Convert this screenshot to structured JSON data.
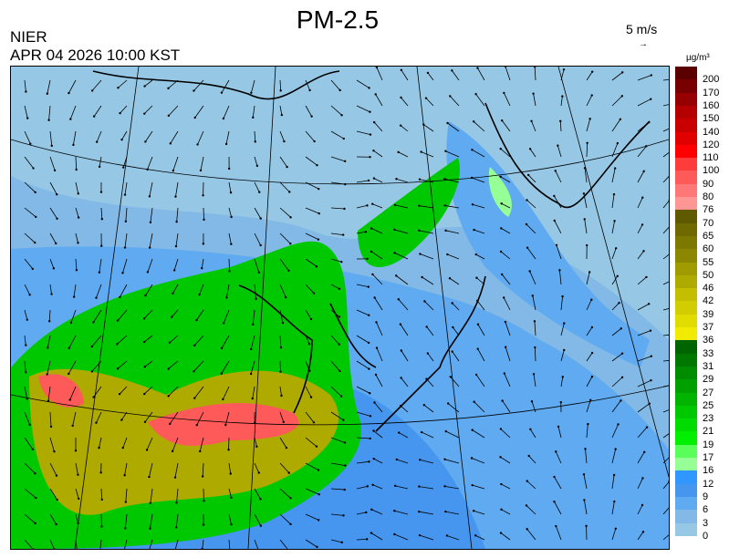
{
  "title": "PM-2.5",
  "org": "NIER",
  "timestamp": "APR 04 2026 10:00 KST",
  "wind_scale": {
    "label": "5 m/s",
    "icon": "arrow-right-icon"
  },
  "colorbar": {
    "unit": "µg/m³",
    "labels": [
      "200",
      "170",
      "160",
      "150",
      "140",
      "120",
      "110",
      "100",
      "90",
      "80",
      "76",
      "70",
      "65",
      "60",
      "55",
      "50",
      "46",
      "42",
      "39",
      "37",
      "36",
      "33",
      "31",
      "29",
      "27",
      "25",
      "23",
      "21",
      "19",
      "17",
      "16",
      "12",
      "9",
      "6",
      "3",
      "0"
    ],
    "colors": [
      "#5a0000",
      "#780000",
      "#960000",
      "#b40000",
      "#c80000",
      "#e00000",
      "#ff0000",
      "#ff3c3c",
      "#ff5a5a",
      "#ff7878",
      "#ff9696",
      "#5f5a00",
      "#6e6900",
      "#7d7800",
      "#8c8700",
      "#a09b00",
      "#afaa00",
      "#c3be00",
      "#d2cd00",
      "#e1dc00",
      "#f0eb00",
      "#006400",
      "#007800",
      "#008c00",
      "#00a000",
      "#00b400",
      "#00c800",
      "#00dc00",
      "#00f000",
      "#5aff5a",
      "#96ff96",
      "#3296ff",
      "#4696f0",
      "#5faaf0",
      "#82b9e6",
      "#96c8e6"
    ]
  }
}
